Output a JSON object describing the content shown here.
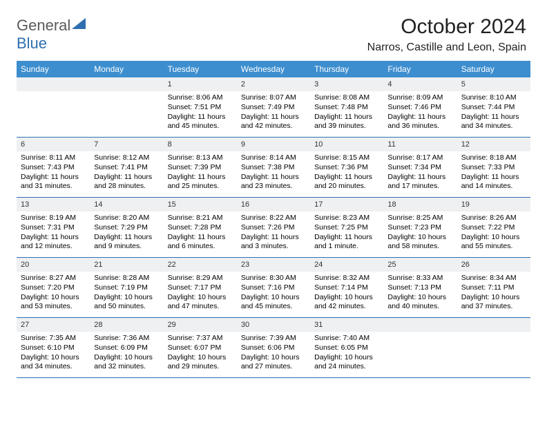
{
  "brand": {
    "part1": "General",
    "part2": "Blue"
  },
  "title": "October 2024",
  "location": "Narros, Castille and Leon, Spain",
  "colors": {
    "header_bg": "#3d8ecf",
    "border": "#2f6fb0",
    "daynum_bg": "#eef0f2",
    "text": "#000000",
    "brand_gray": "#5a5a5a",
    "brand_blue": "#2f6fb0",
    "page_bg": "#ffffff"
  },
  "typography": {
    "title_fontsize": 30,
    "location_fontsize": 16,
    "dow_fontsize": 12,
    "cell_fontsize": 10.5
  },
  "days_of_week": [
    "Sunday",
    "Monday",
    "Tuesday",
    "Wednesday",
    "Thursday",
    "Friday",
    "Saturday"
  ],
  "weeks": [
    [
      null,
      null,
      {
        "n": "1",
        "sr": "Sunrise: 8:06 AM",
        "ss": "Sunset: 7:51 PM",
        "dl": "Daylight: 11 hours and 45 minutes."
      },
      {
        "n": "2",
        "sr": "Sunrise: 8:07 AM",
        "ss": "Sunset: 7:49 PM",
        "dl": "Daylight: 11 hours and 42 minutes."
      },
      {
        "n": "3",
        "sr": "Sunrise: 8:08 AM",
        "ss": "Sunset: 7:48 PM",
        "dl": "Daylight: 11 hours and 39 minutes."
      },
      {
        "n": "4",
        "sr": "Sunrise: 8:09 AM",
        "ss": "Sunset: 7:46 PM",
        "dl": "Daylight: 11 hours and 36 minutes."
      },
      {
        "n": "5",
        "sr": "Sunrise: 8:10 AM",
        "ss": "Sunset: 7:44 PM",
        "dl": "Daylight: 11 hours and 34 minutes."
      }
    ],
    [
      {
        "n": "6",
        "sr": "Sunrise: 8:11 AM",
        "ss": "Sunset: 7:43 PM",
        "dl": "Daylight: 11 hours and 31 minutes."
      },
      {
        "n": "7",
        "sr": "Sunrise: 8:12 AM",
        "ss": "Sunset: 7:41 PM",
        "dl": "Daylight: 11 hours and 28 minutes."
      },
      {
        "n": "8",
        "sr": "Sunrise: 8:13 AM",
        "ss": "Sunset: 7:39 PM",
        "dl": "Daylight: 11 hours and 25 minutes."
      },
      {
        "n": "9",
        "sr": "Sunrise: 8:14 AM",
        "ss": "Sunset: 7:38 PM",
        "dl": "Daylight: 11 hours and 23 minutes."
      },
      {
        "n": "10",
        "sr": "Sunrise: 8:15 AM",
        "ss": "Sunset: 7:36 PM",
        "dl": "Daylight: 11 hours and 20 minutes."
      },
      {
        "n": "11",
        "sr": "Sunrise: 8:17 AM",
        "ss": "Sunset: 7:34 PM",
        "dl": "Daylight: 11 hours and 17 minutes."
      },
      {
        "n": "12",
        "sr": "Sunrise: 8:18 AM",
        "ss": "Sunset: 7:33 PM",
        "dl": "Daylight: 11 hours and 14 minutes."
      }
    ],
    [
      {
        "n": "13",
        "sr": "Sunrise: 8:19 AM",
        "ss": "Sunset: 7:31 PM",
        "dl": "Daylight: 11 hours and 12 minutes."
      },
      {
        "n": "14",
        "sr": "Sunrise: 8:20 AM",
        "ss": "Sunset: 7:29 PM",
        "dl": "Daylight: 11 hours and 9 minutes."
      },
      {
        "n": "15",
        "sr": "Sunrise: 8:21 AM",
        "ss": "Sunset: 7:28 PM",
        "dl": "Daylight: 11 hours and 6 minutes."
      },
      {
        "n": "16",
        "sr": "Sunrise: 8:22 AM",
        "ss": "Sunset: 7:26 PM",
        "dl": "Daylight: 11 hours and 3 minutes."
      },
      {
        "n": "17",
        "sr": "Sunrise: 8:23 AM",
        "ss": "Sunset: 7:25 PM",
        "dl": "Daylight: 11 hours and 1 minute."
      },
      {
        "n": "18",
        "sr": "Sunrise: 8:25 AM",
        "ss": "Sunset: 7:23 PM",
        "dl": "Daylight: 10 hours and 58 minutes."
      },
      {
        "n": "19",
        "sr": "Sunrise: 8:26 AM",
        "ss": "Sunset: 7:22 PM",
        "dl": "Daylight: 10 hours and 55 minutes."
      }
    ],
    [
      {
        "n": "20",
        "sr": "Sunrise: 8:27 AM",
        "ss": "Sunset: 7:20 PM",
        "dl": "Daylight: 10 hours and 53 minutes."
      },
      {
        "n": "21",
        "sr": "Sunrise: 8:28 AM",
        "ss": "Sunset: 7:19 PM",
        "dl": "Daylight: 10 hours and 50 minutes."
      },
      {
        "n": "22",
        "sr": "Sunrise: 8:29 AM",
        "ss": "Sunset: 7:17 PM",
        "dl": "Daylight: 10 hours and 47 minutes."
      },
      {
        "n": "23",
        "sr": "Sunrise: 8:30 AM",
        "ss": "Sunset: 7:16 PM",
        "dl": "Daylight: 10 hours and 45 minutes."
      },
      {
        "n": "24",
        "sr": "Sunrise: 8:32 AM",
        "ss": "Sunset: 7:14 PM",
        "dl": "Daylight: 10 hours and 42 minutes."
      },
      {
        "n": "25",
        "sr": "Sunrise: 8:33 AM",
        "ss": "Sunset: 7:13 PM",
        "dl": "Daylight: 10 hours and 40 minutes."
      },
      {
        "n": "26",
        "sr": "Sunrise: 8:34 AM",
        "ss": "Sunset: 7:11 PM",
        "dl": "Daylight: 10 hours and 37 minutes."
      }
    ],
    [
      {
        "n": "27",
        "sr": "Sunrise: 7:35 AM",
        "ss": "Sunset: 6:10 PM",
        "dl": "Daylight: 10 hours and 34 minutes."
      },
      {
        "n": "28",
        "sr": "Sunrise: 7:36 AM",
        "ss": "Sunset: 6:09 PM",
        "dl": "Daylight: 10 hours and 32 minutes."
      },
      {
        "n": "29",
        "sr": "Sunrise: 7:37 AM",
        "ss": "Sunset: 6:07 PM",
        "dl": "Daylight: 10 hours and 29 minutes."
      },
      {
        "n": "30",
        "sr": "Sunrise: 7:39 AM",
        "ss": "Sunset: 6:06 PM",
        "dl": "Daylight: 10 hours and 27 minutes."
      },
      {
        "n": "31",
        "sr": "Sunrise: 7:40 AM",
        "ss": "Sunset: 6:05 PM",
        "dl": "Daylight: 10 hours and 24 minutes."
      },
      null,
      null
    ]
  ]
}
